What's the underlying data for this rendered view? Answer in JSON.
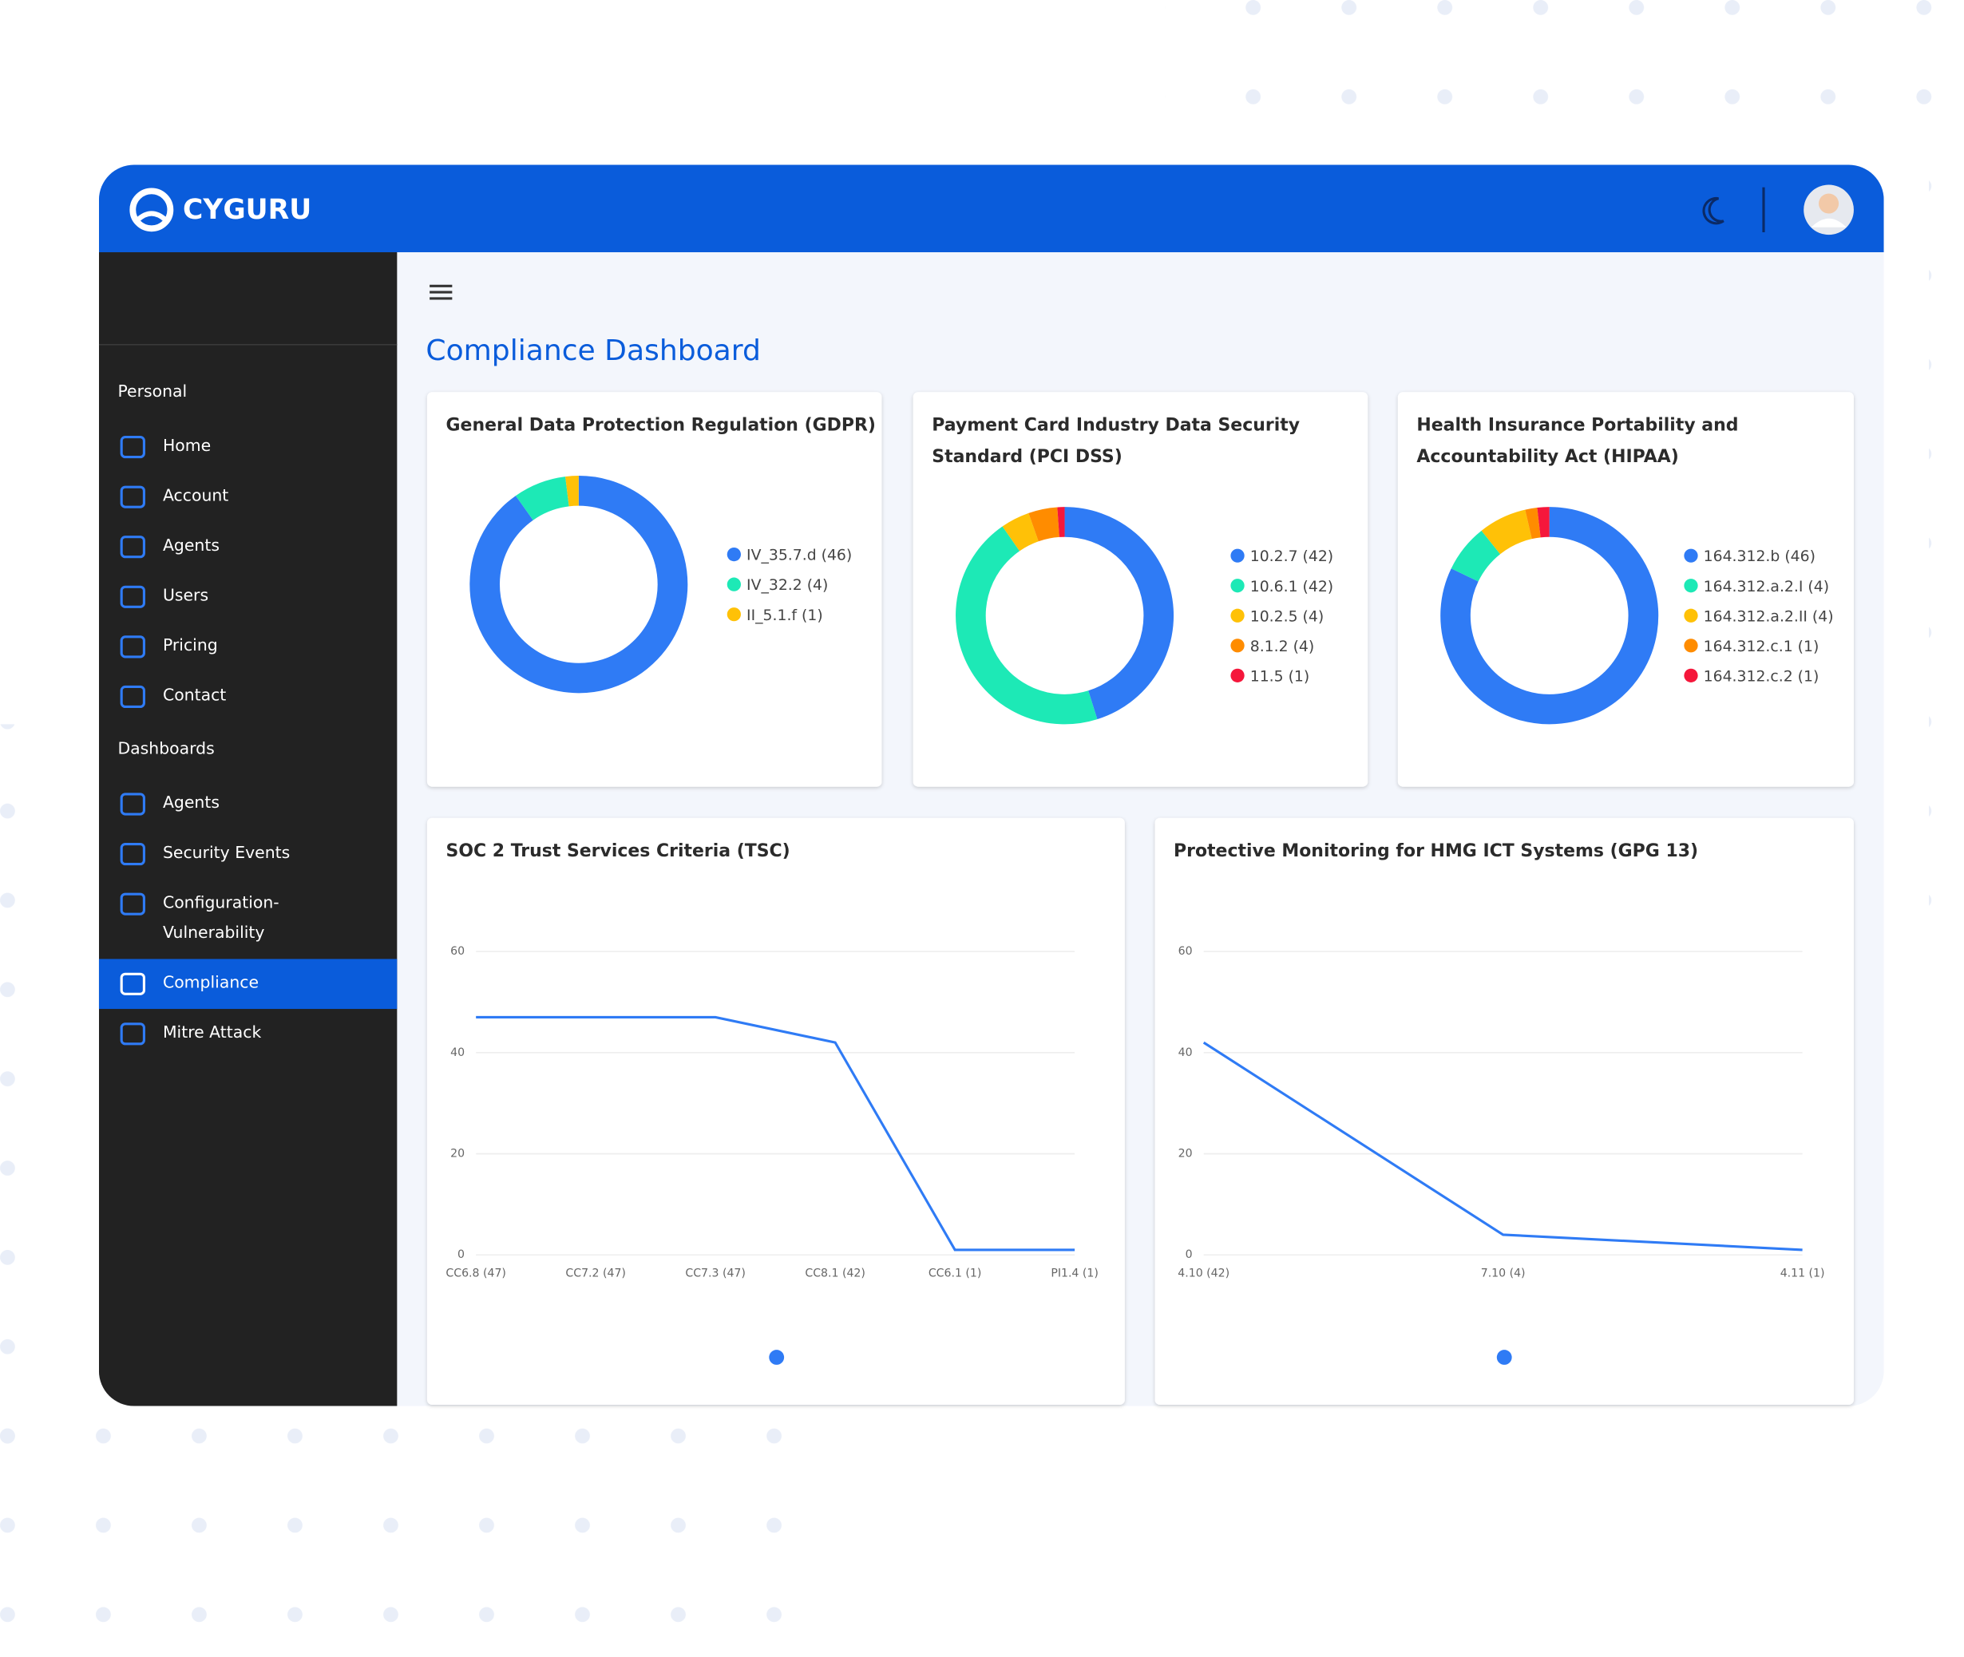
{
  "header": {
    "logo": "CYGURU"
  },
  "sidebar": {
    "sections": [
      {
        "title": "Personal",
        "items": [
          "Home",
          "Account",
          "Agents",
          "Users",
          "Pricing",
          "Contact"
        ]
      },
      {
        "title": "Dashboards",
        "items": [
          "Agents",
          "Security Events",
          "Configuration-Vulnerability",
          "Compliance",
          "Mitre Attack"
        ],
        "active": 3
      }
    ]
  },
  "page_title": "Compliance Dashboard",
  "chart_data": [
    {
      "type": "pie",
      "title": "General Data Protection Regulation (GDPR)",
      "categories": [
        "IV_35.7.d (46)",
        "IV_32.2 (4)",
        "II_5.1.f (1)"
      ],
      "values": [
        46,
        4,
        1
      ],
      "colors": [
        "#2f7bf5",
        "#1de9b6",
        "#ffc107"
      ]
    },
    {
      "type": "pie",
      "title": "Payment Card Industry Data Security Standard (PCI DSS)",
      "categories": [
        "10.2.7 (42)",
        "10.6.1 (42)",
        "10.2.5 (4)",
        "8.1.2 (4)",
        "11.5 (1)"
      ],
      "values": [
        42,
        42,
        4,
        4,
        1
      ],
      "colors": [
        "#2f7bf5",
        "#1de9b6",
        "#ffc107",
        "#ff8c00",
        "#f5173b"
      ]
    },
    {
      "type": "pie",
      "title": "Health Insurance Portability and Accountability Act (HIPAA)",
      "categories": [
        "164.312.b (46)",
        "164.312.a.2.I (4)",
        "164.312.a.2.II (4)",
        "164.312.c.1 (1)",
        "164.312.c.2 (1)"
      ],
      "values": [
        46,
        4,
        4,
        1,
        1
      ],
      "colors": [
        "#2f7bf5",
        "#1de9b6",
        "#ffc107",
        "#ff8c00",
        "#f5173b"
      ]
    },
    {
      "type": "line",
      "title": "SOC 2 Trust Services Criteria (TSC)",
      "categories": [
        "CC6.8 (47)",
        "CC7.2 (47)",
        "CC7.3 (47)",
        "CC8.1 (42)",
        "CC6.1 (1)",
        "PI1.4 (1)"
      ],
      "values": [
        47,
        47,
        47,
        42,
        1,
        1
      ],
      "color": "#2f7bf5",
      "ylim": [
        0,
        60
      ],
      "yticks": [
        0,
        20,
        40,
        60
      ],
      "grid": true
    },
    {
      "type": "line",
      "title": "Protective Monitoring for HMG ICT Systems (GPG 13)",
      "categories": [
        "4.10 (42)",
        "7.10 (4)",
        "4.11 (1)"
      ],
      "values": [
        42,
        4,
        1
      ],
      "color": "#2f7bf5",
      "ylim": [
        0,
        60
      ],
      "yticks": [
        0,
        20,
        40,
        60
      ],
      "grid": true
    }
  ]
}
